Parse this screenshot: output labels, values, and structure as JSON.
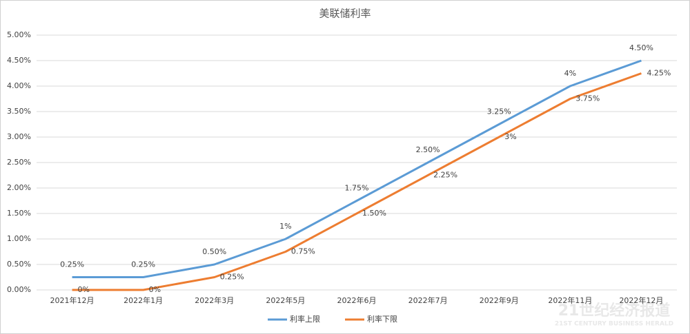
{
  "chart_data": {
    "type": "line",
    "title": "美联储利率",
    "categories": [
      "2021年12月",
      "2022年1月",
      "2022年3月",
      "2022年5月",
      "2022年6月",
      "2022年7月",
      "2022年9月",
      "2022年11月",
      "2022年12月"
    ],
    "series": [
      {
        "name": "利率上限",
        "color": "#5b9bd5",
        "values": [
          0.25,
          0.25,
          0.5,
          1,
          1.75,
          2.5,
          3.25,
          4,
          4.5
        ],
        "value_labels": [
          "0.25%",
          "0.25%",
          "0.50%",
          "1%",
          "1.75%",
          "2.50%",
          "3.25%",
          "4%",
          "4.50%"
        ]
      },
      {
        "name": "利率下限",
        "color": "#ed7d31",
        "values": [
          0,
          0,
          0.25,
          0.75,
          1.5,
          2.25,
          3,
          3.75,
          4.25
        ],
        "value_labels": [
          "0%",
          "0%",
          "0.25%",
          "0.75%",
          "1.50%",
          "2.25%",
          "3%",
          "3.75%",
          "4.25%"
        ]
      }
    ],
    "ylim": [
      0,
      5
    ],
    "yticks": [
      {
        "value": 0,
        "label": "0.00%"
      },
      {
        "value": 0.5,
        "label": "0.50%"
      },
      {
        "value": 1,
        "label": "1.00%"
      },
      {
        "value": 1.5,
        "label": "1.50%"
      },
      {
        "value": 2,
        "label": "2.00%"
      },
      {
        "value": 2.5,
        "label": "2.50%"
      },
      {
        "value": 3,
        "label": "3.00%"
      },
      {
        "value": 3.5,
        "label": "3.50%"
      },
      {
        "value": 4,
        "label": "4.00%"
      },
      {
        "value": 4.5,
        "label": "4.50%"
      },
      {
        "value": 5,
        "label": "5.00%"
      }
    ],
    "grid": true,
    "legend": "bottom",
    "watermark": {
      "title": "21世纪经济报道",
      "subtitle": "21ST CENTURY BUSINESS HERALD"
    }
  }
}
